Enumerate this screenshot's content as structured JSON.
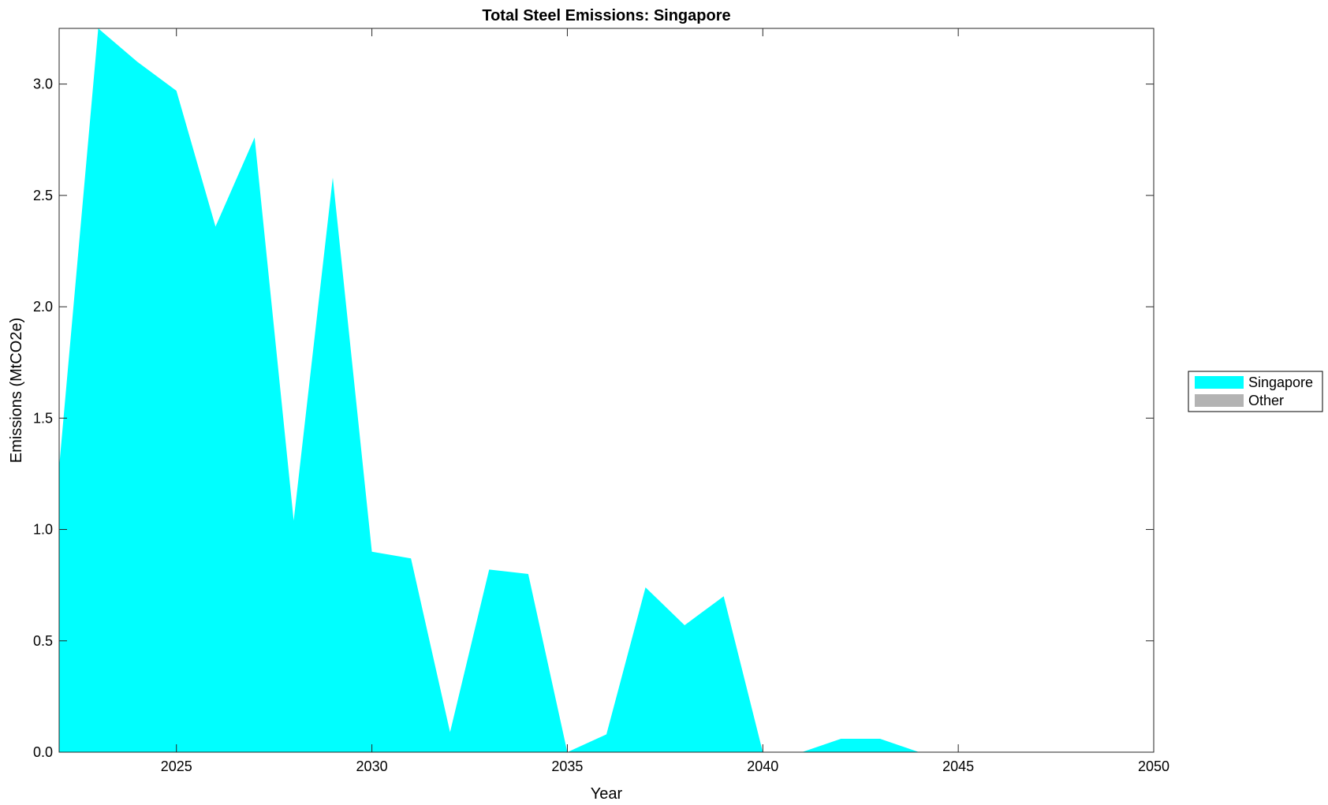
{
  "chart_data": {
    "type": "area",
    "title": "Total Steel Emissions: Singapore",
    "xlabel": "Year",
    "ylabel": "Emissions (MtCO2e)",
    "xlim": [
      2022,
      2050
    ],
    "ylim": [
      0,
      3.25
    ],
    "x_ticks": [
      2025,
      2030,
      2035,
      2040,
      2045,
      2050
    ],
    "y_ticks": [
      0,
      0.5,
      1,
      1.5,
      2,
      2.5,
      3
    ],
    "x_tick_labels": [
      "2025",
      "2030",
      "2035",
      "2040",
      "2045",
      "2050"
    ],
    "y_tick_labels": [
      "0.0",
      "0.5",
      "1.0",
      "1.5",
      "2.0",
      "2.5",
      "3.0"
    ],
    "grid": false,
    "legend_position": "right",
    "x": [
      2022,
      2023,
      2024,
      2025,
      2026,
      2027,
      2028,
      2029,
      2030,
      2031,
      2032,
      2033,
      2034,
      2035,
      2036,
      2037,
      2038,
      2039,
      2040,
      2041,
      2042,
      2043,
      2044,
      2045,
      2046,
      2047,
      2048,
      2049,
      2050
    ],
    "series": [
      {
        "name": "Singapore",
        "color": "#00ffff",
        "values": [
          1.28,
          3.25,
          3.1,
          2.97,
          2.36,
          2.76,
          1.04,
          2.58,
          0.9,
          0.87,
          0.09,
          0.82,
          0.8,
          0.0,
          0.08,
          0.74,
          0.57,
          0.7,
          0.0,
          0.0,
          0.06,
          0.06,
          0.0,
          0.0,
          0.0,
          0.0,
          0.0,
          0.0,
          0.0
        ]
      },
      {
        "name": "Other",
        "color": "#b3b3b3",
        "values": [
          0,
          0,
          0,
          0,
          0,
          0,
          0,
          0,
          0,
          0,
          0,
          0,
          0,
          0,
          0,
          0,
          0,
          0,
          0,
          0,
          0,
          0,
          0,
          0,
          0,
          0,
          0,
          0,
          0
        ]
      }
    ]
  }
}
